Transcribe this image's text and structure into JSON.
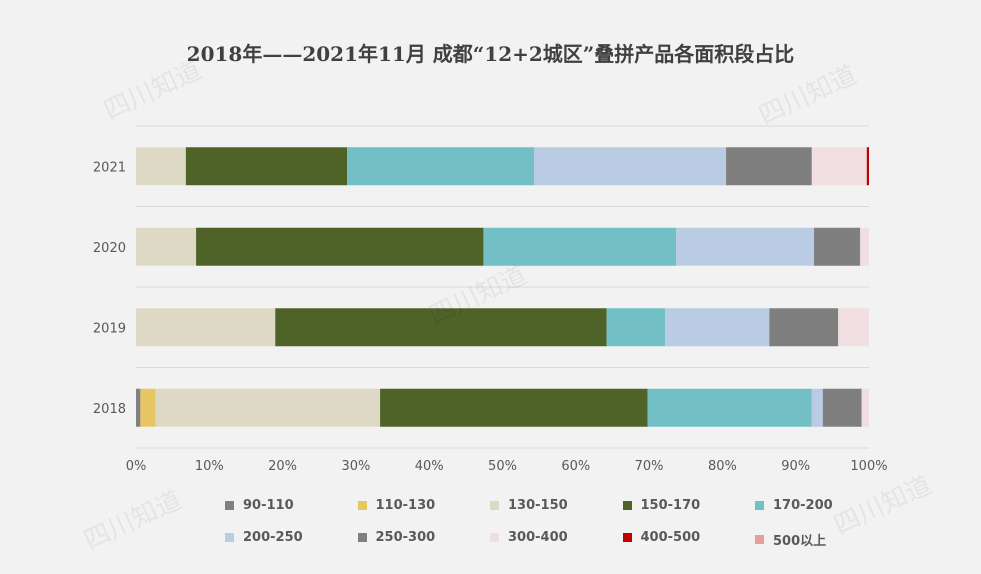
{
  "title": "2018年——2021年11月 成都“12+2城区”叠拼产品各面积段占比",
  "watermark": "四川知道",
  "chart_data": {
    "type": "bar",
    "orientation": "horizontal",
    "stacked": true,
    "percent": true,
    "categories": [
      "2021",
      "2020",
      "2019",
      "2018"
    ],
    "xlim": [
      0,
      100
    ],
    "xticks": [
      "0%",
      "10%",
      "20%",
      "30%",
      "40%",
      "50%",
      "60%",
      "70%",
      "80%",
      "90%",
      "100%"
    ],
    "grid": true,
    "legend_position": "bottom",
    "series": [
      {
        "name": "90-110",
        "color": "#808080",
        "values": [
          0,
          0,
          0,
          0.6
        ]
      },
      {
        "name": "110-130",
        "color": "#e9c664",
        "values": [
          0,
          0,
          0,
          2.1
        ]
      },
      {
        "name": "130-150",
        "color": "#ddd9c4",
        "values": [
          6.8,
          8.2,
          19.0,
          30.6
        ]
      },
      {
        "name": "150-170",
        "color": "#4f6228",
        "values": [
          22.0,
          39.2,
          45.2,
          36.5
        ]
      },
      {
        "name": "170-200",
        "color": "#72bfc6",
        "values": [
          25.5,
          26.3,
          8.0,
          22.4
        ]
      },
      {
        "name": "200-250",
        "color": "#b9cce4",
        "values": [
          26.2,
          18.8,
          14.2,
          1.5
        ]
      },
      {
        "name": "250-300",
        "color": "#7f7f7f",
        "values": [
          11.7,
          6.3,
          9.4,
          5.3
        ]
      },
      {
        "name": "300-400",
        "color": "#f0dee0",
        "values": [
          7.5,
          1.2,
          4.2,
          1.0
        ]
      },
      {
        "name": "400-500",
        "color": "#c00000",
        "values": [
          0.3,
          0,
          0,
          0
        ]
      },
      {
        "name": "500以上",
        "color": "#e6a09a",
        "values": [
          0,
          0,
          0,
          0
        ]
      }
    ]
  }
}
